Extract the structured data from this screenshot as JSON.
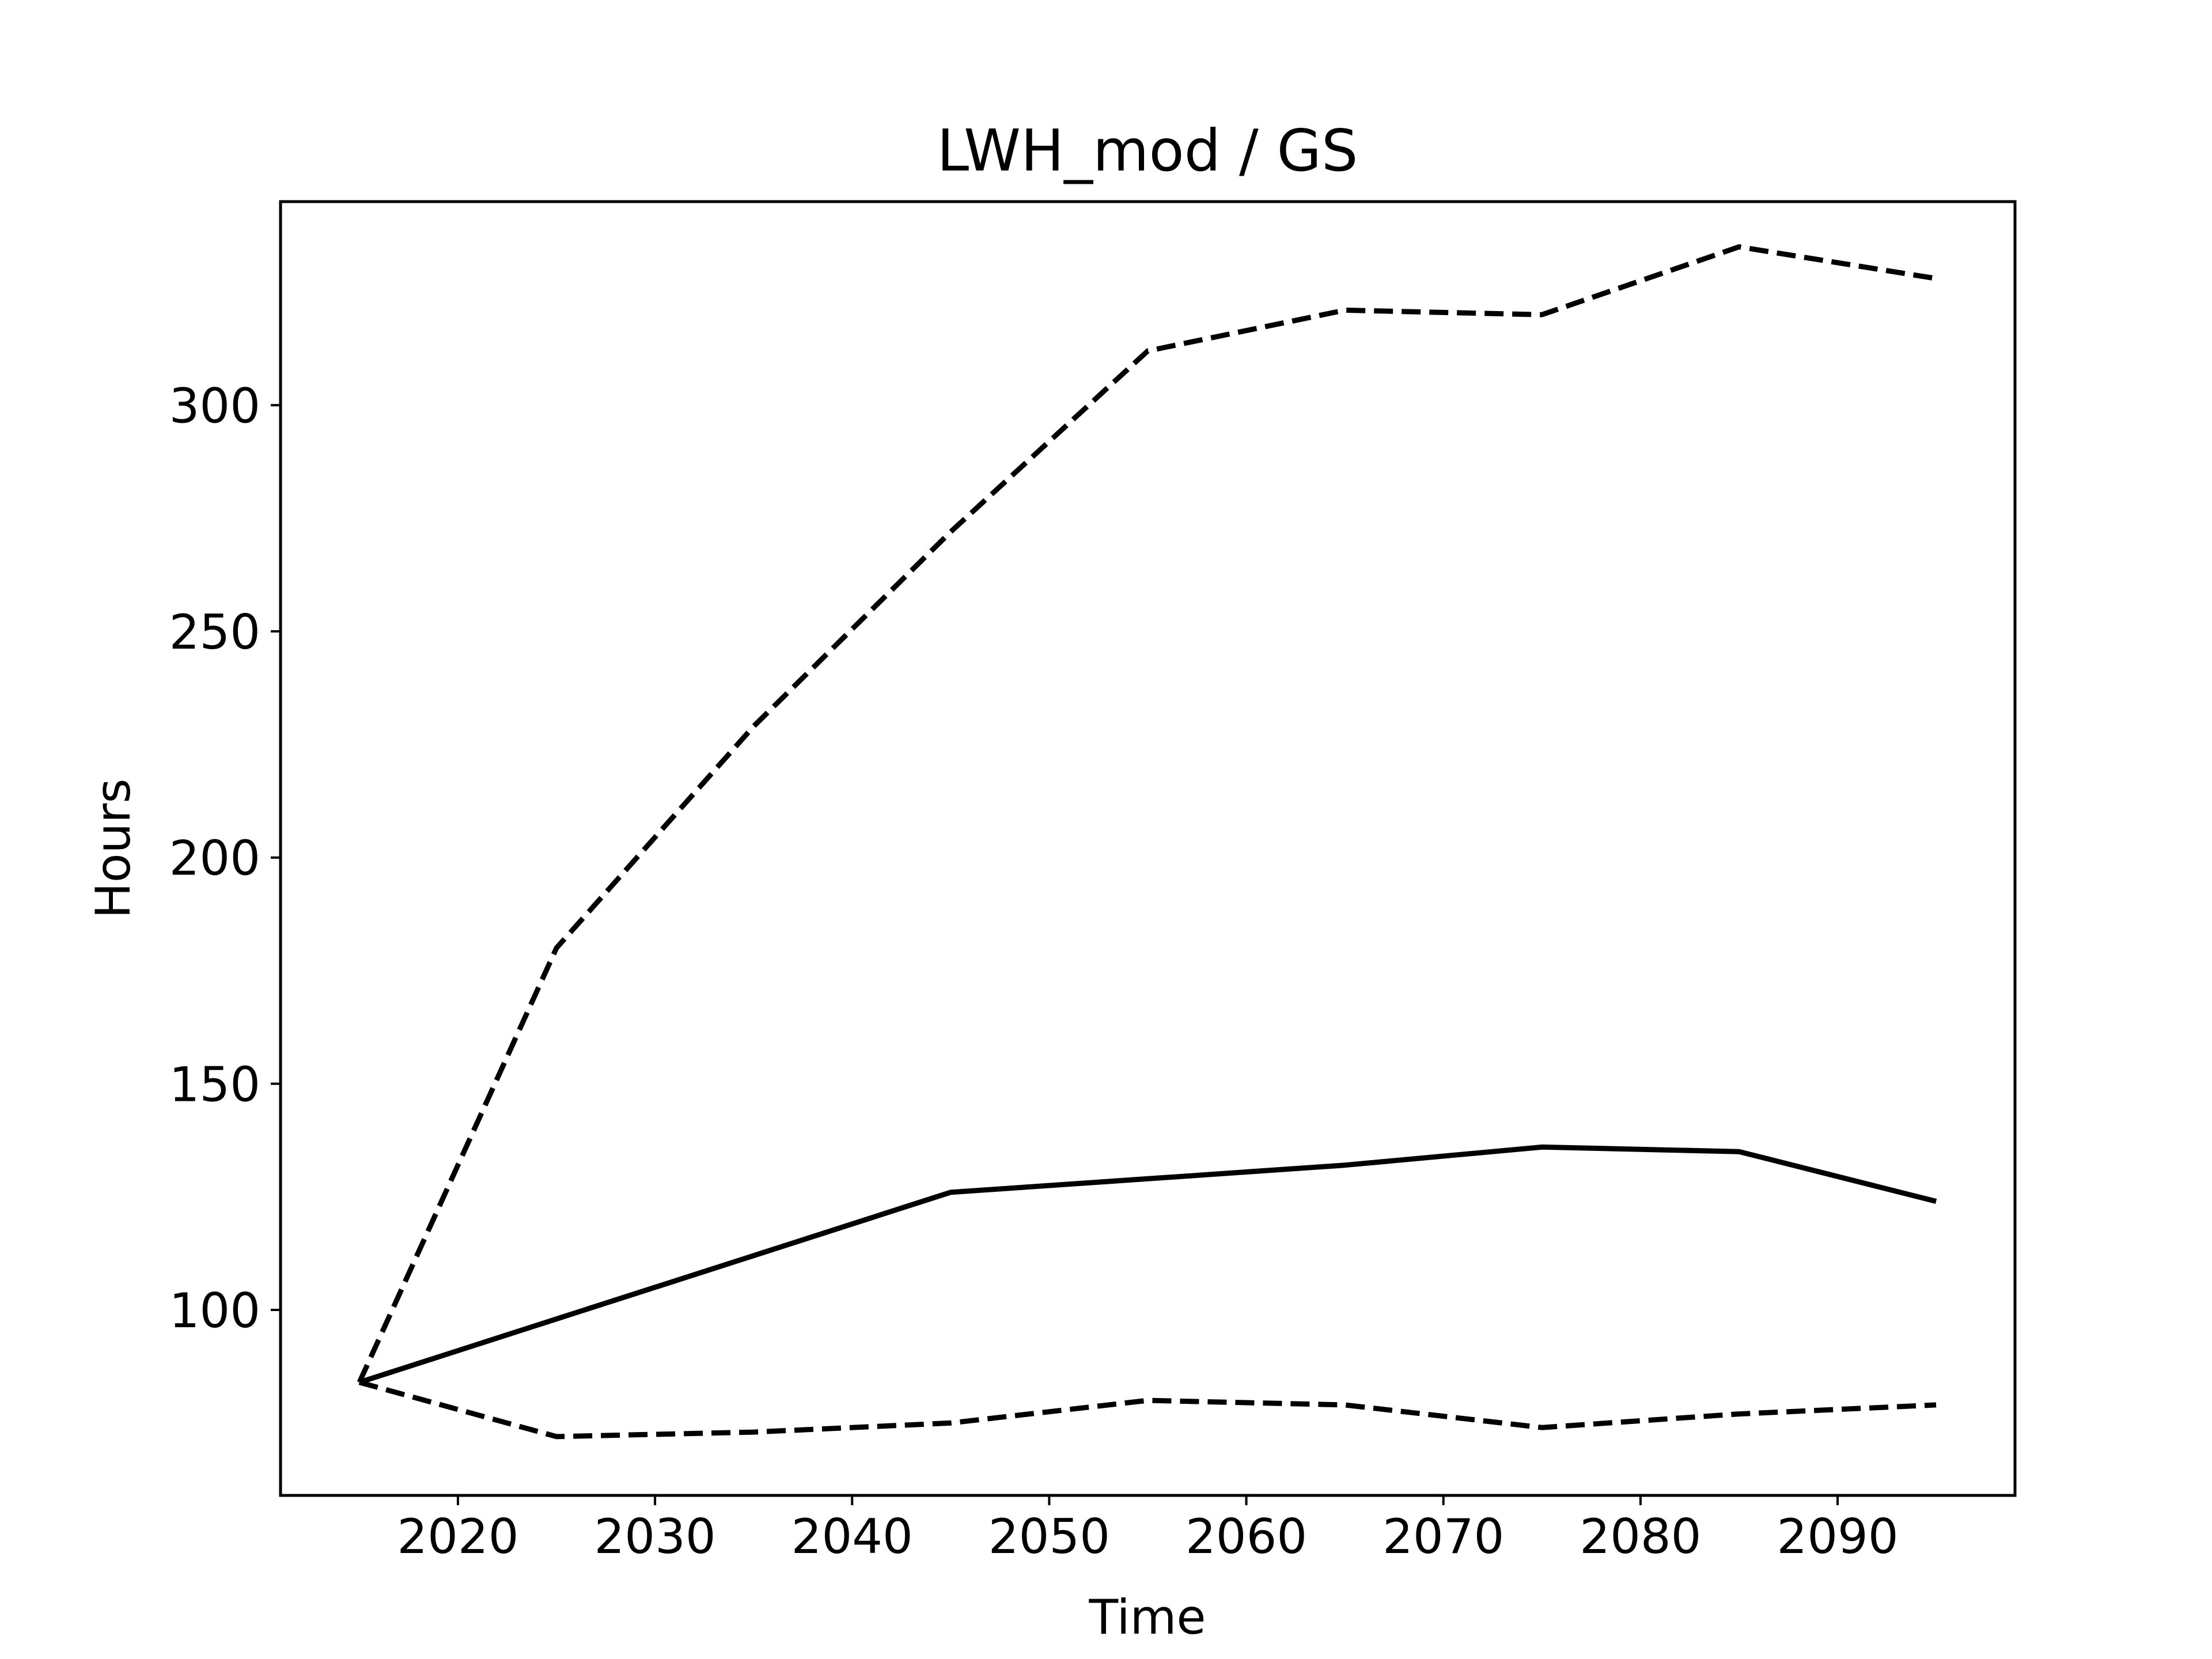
{
  "chart_data": {
    "type": "line",
    "title": "LWH_mod / GS",
    "xlabel": "Time",
    "ylabel": "Hours",
    "xlim": [
      2011,
      2099
    ],
    "ylim": [
      59,
      345
    ],
    "xticks": [
      2020,
      2030,
      2040,
      2050,
      2060,
      2070,
      2080,
      2090
    ],
    "yticks": [
      100,
      150,
      200,
      250,
      300
    ],
    "grid": false,
    "legend": "none",
    "x": [
      2015,
      2025,
      2035,
      2045,
      2055,
      2065,
      2075,
      2085,
      2095
    ],
    "series": [
      {
        "style": "solid",
        "color": "#000000",
        "values": [
          84,
          98,
          112,
          126,
          129,
          132,
          136,
          135,
          124
        ]
      },
      {
        "style": "dashed",
        "color": "#000000",
        "values": [
          84,
          180,
          229,
          272,
          312,
          321,
          320,
          335,
          328
        ]
      },
      {
        "style": "dashed",
        "color": "#000000",
        "values": [
          84,
          72,
          73,
          75,
          80,
          79,
          74,
          77,
          79
        ]
      }
    ]
  }
}
